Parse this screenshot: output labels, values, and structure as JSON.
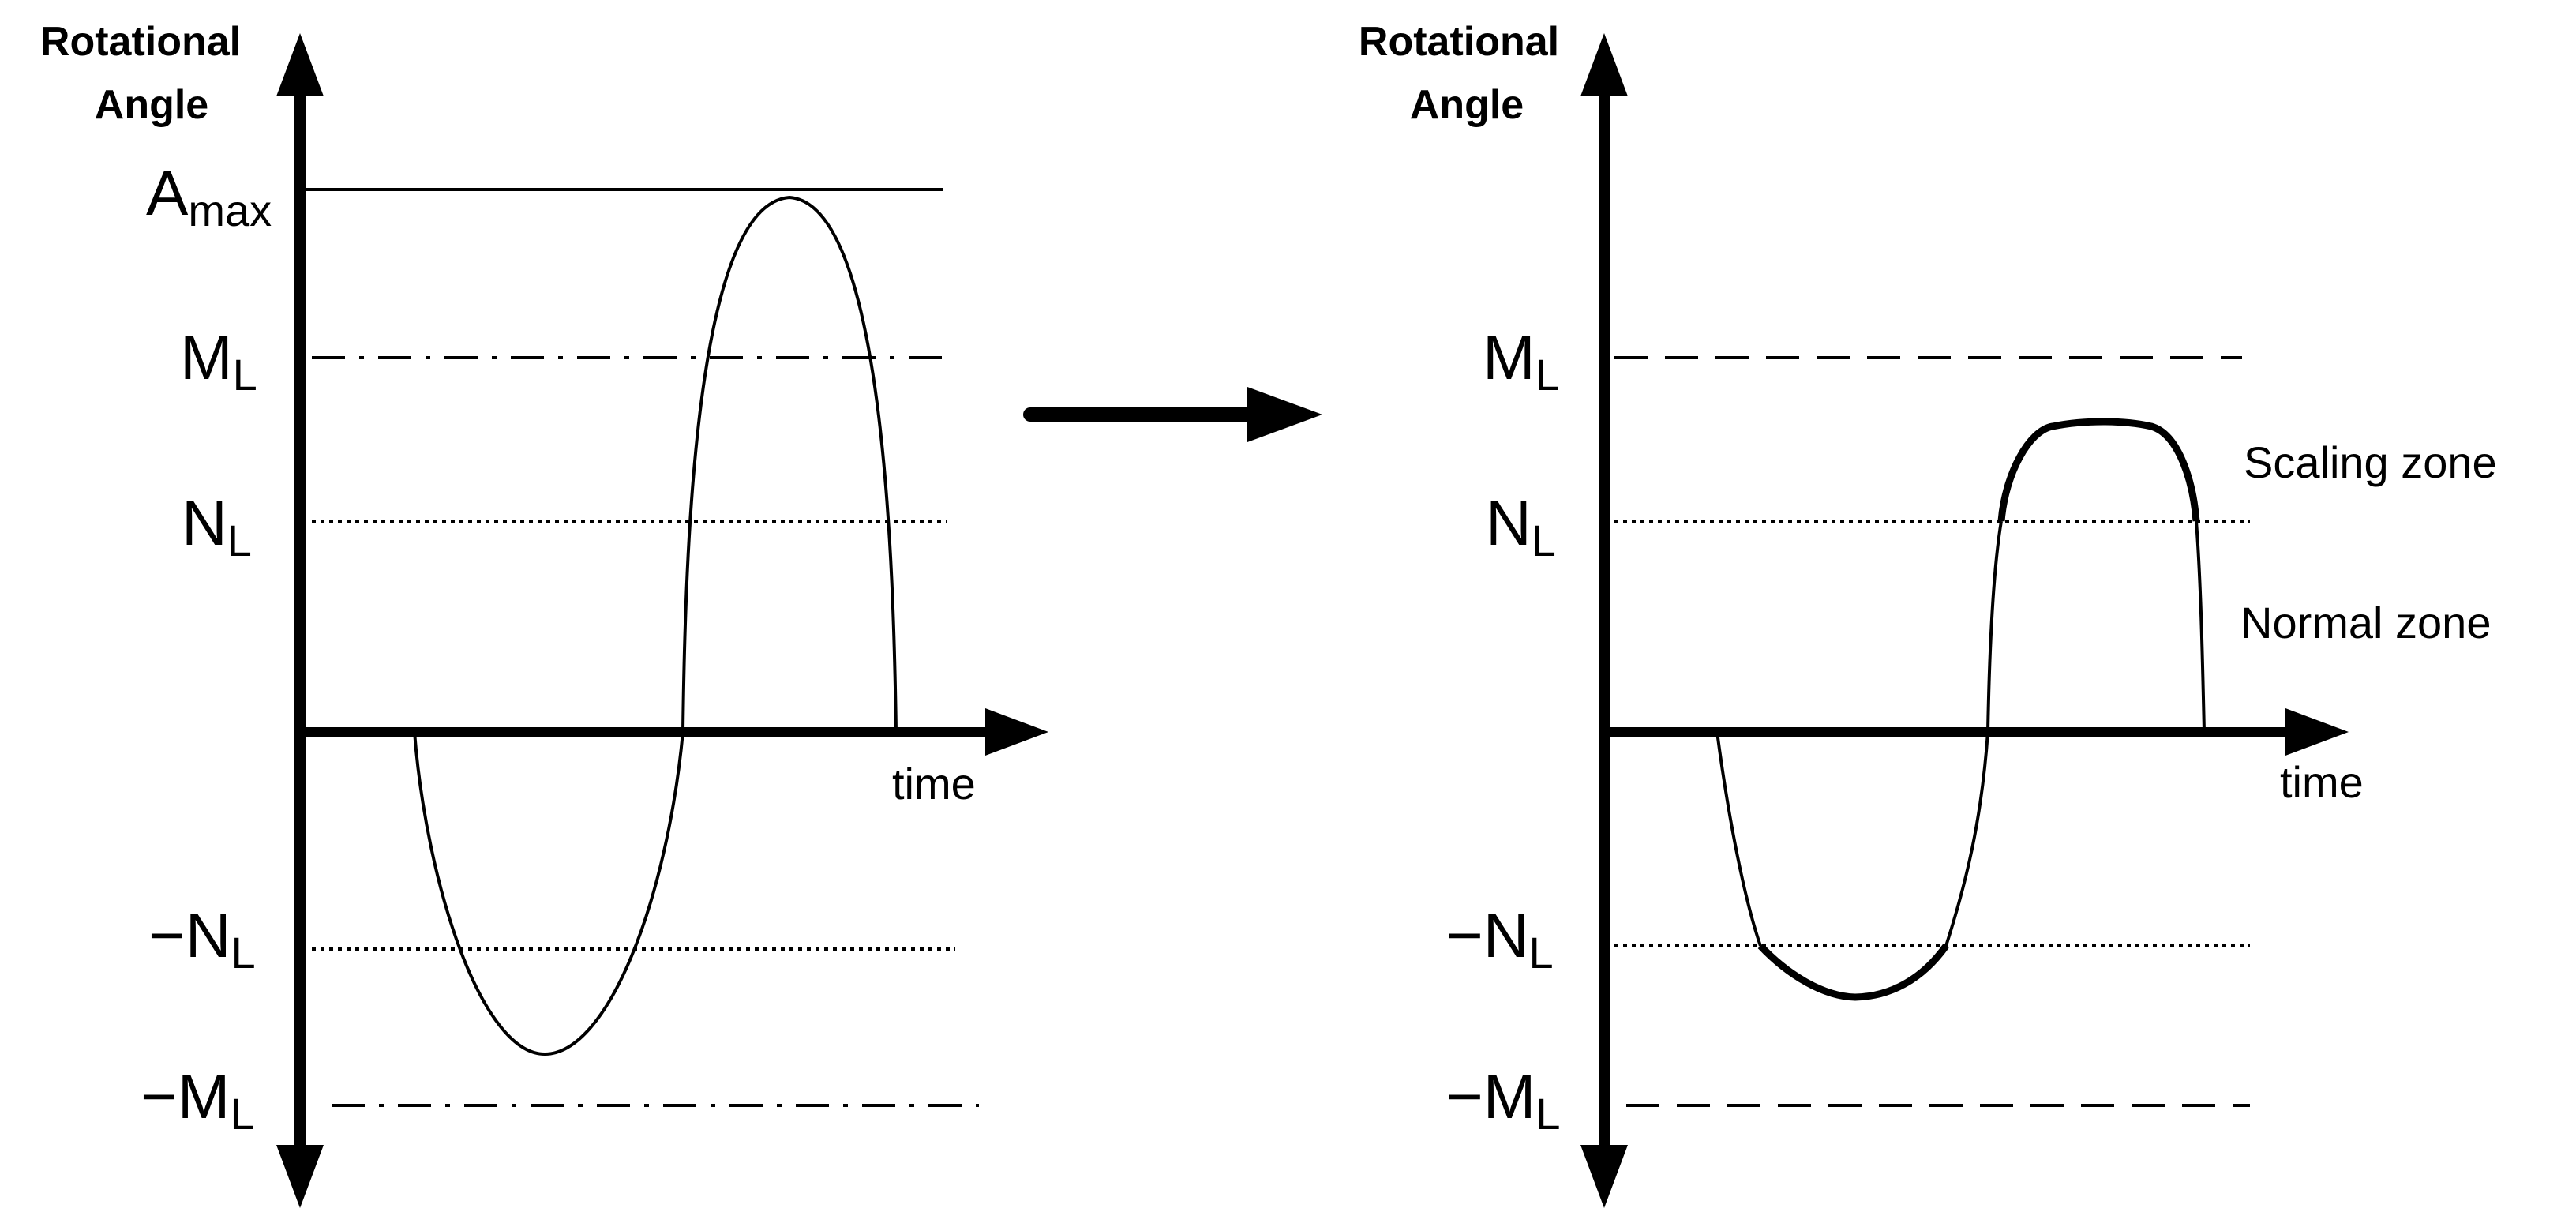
{
  "left_panel": {
    "y_axis_title_line1": "Rotational",
    "y_axis_title_line2": "Angle",
    "a_max": {
      "main": "A",
      "sub": "max"
    },
    "m_l": {
      "main": "M",
      "sub": "L"
    },
    "n_l": {
      "main": "N",
      "sub": "L"
    },
    "neg_n_l": {
      "main": "−N",
      "sub": "L"
    },
    "neg_m_l": {
      "main": "−M",
      "sub": "L"
    },
    "x_axis_label": "time"
  },
  "right_panel": {
    "y_axis_title_line1": "Rotational",
    "y_axis_title_line2": "Angle",
    "m_l": {
      "main": "M",
      "sub": "L"
    },
    "n_l": {
      "main": "N",
      "sub": "L"
    },
    "neg_n_l": {
      "main": "−N",
      "sub": "L"
    },
    "neg_m_l": {
      "main": "−M",
      "sub": "L"
    },
    "x_axis_label": "time",
    "scaling_zone_label": "Scaling zone",
    "normal_zone_label": "Normal zone"
  },
  "colors": {
    "stroke": "#000000",
    "label_dash": "#555555"
  }
}
